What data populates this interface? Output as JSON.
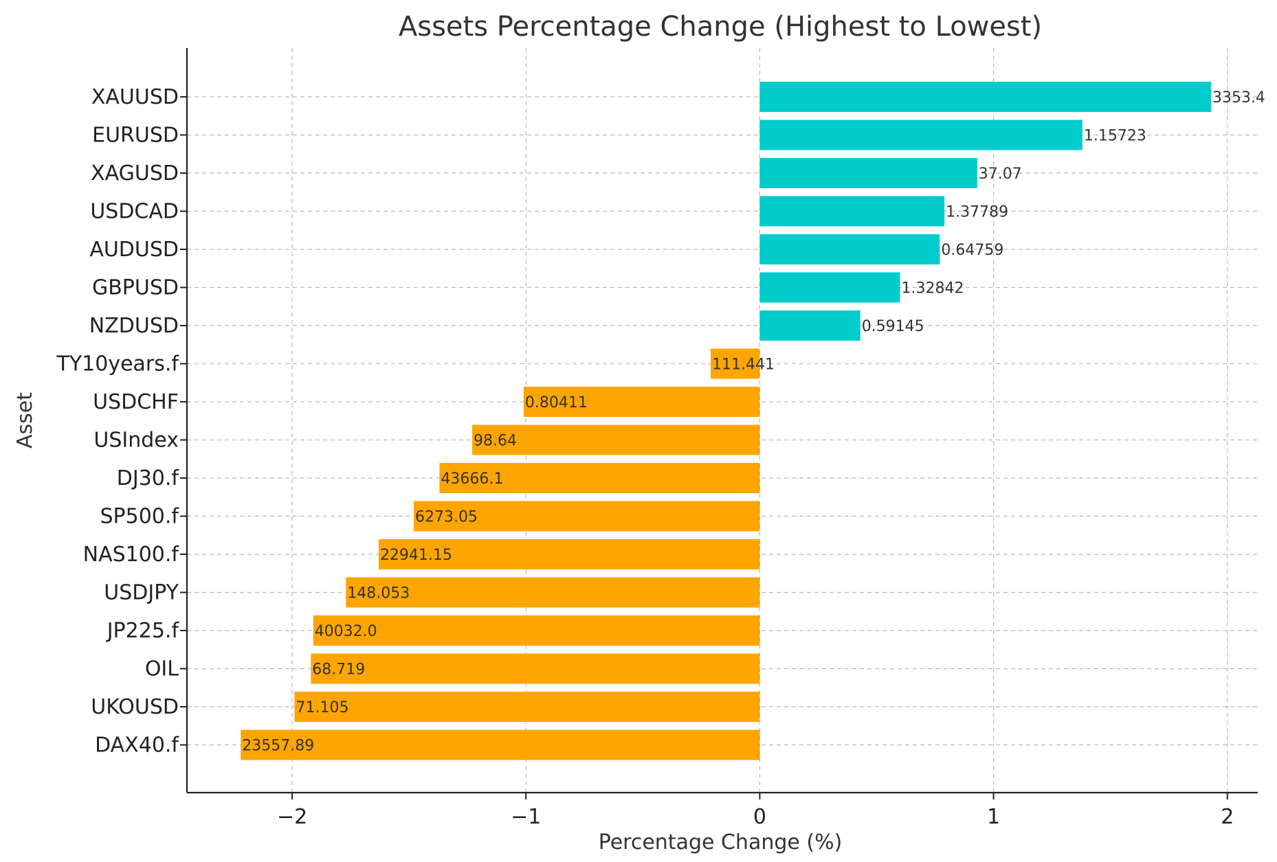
{
  "chart_data": {
    "type": "bar",
    "orientation": "horizontal",
    "title": "Assets Percentage Change (Highest to Lowest)",
    "xlabel": "Percentage Change (%)",
    "ylabel": "Asset",
    "xlim": [
      -2.45,
      2.13
    ],
    "xticks": [
      -2,
      -1,
      0,
      1,
      2
    ],
    "xtick_labels": [
      "−2",
      "−1",
      "0",
      "1",
      "2"
    ],
    "grid": true,
    "colors": {
      "positive": "#00cccc",
      "negative": "#ffa500"
    },
    "categories": [
      "XAUUSD",
      "EURUSD",
      "XAGUSD",
      "USDCAD",
      "AUDUSD",
      "GBPUSD",
      "NZDUSD",
      "TY10years.f",
      "USDCHF",
      "USIndex",
      "DJ30.f",
      "SP500.f",
      "NAS100.f",
      "USDJPY",
      "JP225.f",
      "OIL",
      "UKOUSD",
      "DAX40.f"
    ],
    "values": [
      1.93,
      1.38,
      0.93,
      0.79,
      0.77,
      0.6,
      0.43,
      -0.21,
      -1.01,
      -1.23,
      -1.37,
      -1.48,
      -1.63,
      -1.77,
      -1.91,
      -1.92,
      -1.99,
      -2.22
    ],
    "data_labels": [
      "3353.4",
      "1.15723",
      "37.07",
      "1.37789",
      "0.64759",
      "1.32842",
      "0.59145",
      "111.441",
      "0.80411",
      "98.64",
      "43666.1",
      "6273.05",
      "22941.15",
      "148.053",
      "40032.0",
      "68.719",
      "71.105",
      "23557.89"
    ]
  }
}
